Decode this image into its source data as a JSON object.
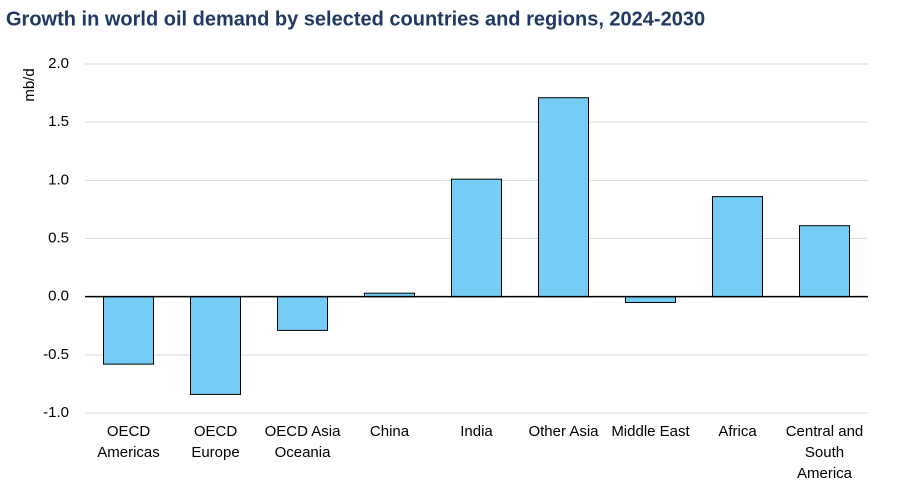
{
  "chart_data": {
    "type": "bar",
    "title": "Growth in world oil demand by selected countries and regions, 2024-2030",
    "y_label": "mb/d",
    "categories": [
      "OECD Americas",
      "OECD Europe",
      "OECD Asia Oceania",
      "China",
      "India",
      "Other Asia",
      "Middle East",
      "Africa",
      "Central and South America"
    ],
    "values": [
      -0.58,
      -0.84,
      -0.29,
      0.03,
      1.01,
      1.71,
      -0.05,
      0.86,
      0.61
    ],
    "color": "#75cdf5",
    "ylim": [
      -1,
      2
    ],
    "yticks": [
      {
        "value": -1,
        "label": "-1.0"
      },
      -0.5,
      {
        "value": 0,
        "label": "0.0"
      },
      0.5,
      {
        "value": 1,
        "label": "1.0"
      },
      1.5,
      {
        "value": 2,
        "label": "2.0"
      }
    ],
    "grid": true
  }
}
